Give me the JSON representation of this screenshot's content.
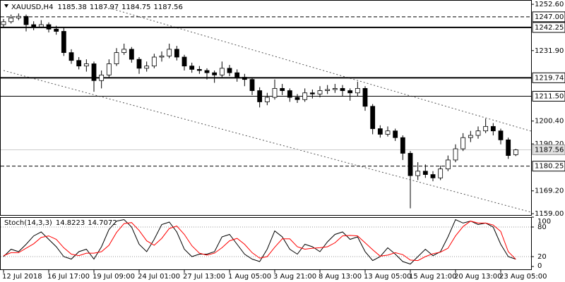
{
  "chart_data": {
    "type": "candlestick",
    "title": "XAUUSD,H4",
    "ohlc_now": [
      1185.38,
      1187.97,
      1184.75,
      1187.56
    ],
    "categories": [
      "12 Jul 2018",
      null,
      null,
      null,
      null,
      null,
      "16 Jul 17:00",
      null,
      null,
      null,
      null,
      null,
      "19 Jul 09:00",
      null,
      null,
      null,
      null,
      null,
      "24 Jul 01:00",
      null,
      null,
      null,
      null,
      null,
      "27 Jul 13:00",
      null,
      null,
      null,
      null,
      null,
      "1 Aug 05:00",
      null,
      null,
      null,
      null,
      null,
      "3 Aug 21:00",
      null,
      null,
      null,
      null,
      null,
      "8 Aug 13:00",
      null,
      null,
      null,
      null,
      null,
      "13 Aug 05:00",
      null,
      null,
      null,
      null,
      null,
      "15 Aug 21:00",
      null,
      null,
      null,
      null,
      null,
      "20 Aug 13:00",
      null,
      null,
      null,
      null,
      null,
      "23 Aug 05:00",
      null,
      null
    ],
    "candles": [
      [
        1243.5,
        1246,
        1242.5,
        1244.8
      ],
      [
        1244.8,
        1248,
        1244,
        1246.5
      ],
      [
        1246.5,
        1248.5,
        1245.5,
        1247.2
      ],
      [
        1247.2,
        1248,
        1240.5,
        1243.5
      ],
      [
        1243.5,
        1245,
        1241,
        1242.5
      ],
      [
        1242.5,
        1245.5,
        1242,
        1243.5
      ],
      [
        1243.5,
        1244.5,
        1240,
        1241.5
      ],
      [
        1241.5,
        1243,
        1239,
        1240.5
      ],
      [
        1240.5,
        1242.5,
        1229.5,
        1231
      ],
      [
        1231,
        1232.5,
        1226,
        1227.5
      ],
      [
        1227.5,
        1229,
        1223.5,
        1225
      ],
      [
        1225,
        1228,
        1222.5,
        1226
      ],
      [
        1226,
        1227,
        1213.5,
        1218.5
      ],
      [
        1218.5,
        1223,
        1215,
        1221
      ],
      [
        1221,
        1228,
        1220,
        1226
      ],
      [
        1226,
        1233,
        1225,
        1231
      ],
      [
        1231,
        1235,
        1230,
        1232.5
      ],
      [
        1232.5,
        1233.5,
        1226.5,
        1228
      ],
      [
        1228,
        1229,
        1221.5,
        1224
      ],
      [
        1224,
        1227,
        1222.5,
        1225
      ],
      [
        1225,
        1230.5,
        1224,
        1229
      ],
      [
        1229,
        1231.5,
        1227,
        1229.5
      ],
      [
        1229.5,
        1235,
        1228.5,
        1232.5
      ],
      [
        1232.5,
        1234,
        1227.5,
        1229
      ],
      [
        1229,
        1230,
        1223,
        1225
      ],
      [
        1225,
        1226.5,
        1222,
        1223.5
      ],
      [
        1223.5,
        1225,
        1221.5,
        1223
      ],
      [
        1223,
        1224,
        1219,
        1222
      ],
      [
        1222,
        1223,
        1217.5,
        1221
      ],
      [
        1221,
        1227,
        1220,
        1224
      ],
      [
        1224,
        1225.5,
        1220.5,
        1222
      ],
      [
        1222,
        1223.5,
        1218,
        1220
      ],
      [
        1220,
        1221.5,
        1216,
        1219
      ],
      [
        1219,
        1220,
        1212,
        1214
      ],
      [
        1214,
        1215.5,
        1206.5,
        1209
      ],
      [
        1209,
        1213,
        1207.5,
        1211
      ],
      [
        1211,
        1219,
        1210,
        1215
      ],
      [
        1215,
        1217,
        1212,
        1214
      ],
      [
        1214,
        1215,
        1209,
        1211
      ],
      [
        1211,
        1212.5,
        1208.5,
        1210
      ],
      [
        1210,
        1215,
        1209,
        1213
      ],
      [
        1213,
        1214.5,
        1210.5,
        1212.5
      ],
      [
        1212.5,
        1216,
        1211,
        1214
      ],
      [
        1214,
        1216.5,
        1212.5,
        1214.5
      ],
      [
        1214.5,
        1217,
        1213,
        1215
      ],
      [
        1215,
        1216.5,
        1211.5,
        1214
      ],
      [
        1214,
        1215,
        1209.5,
        1213
      ],
      [
        1213,
        1218,
        1211.5,
        1215
      ],
      [
        1215,
        1216,
        1205,
        1207
      ],
      [
        1207,
        1208,
        1194.5,
        1197
      ],
      [
        1197,
        1198.5,
        1193,
        1194.5
      ],
      [
        1194.5,
        1198,
        1193.5,
        1196
      ],
      [
        1196,
        1197,
        1191.5,
        1193
      ],
      [
        1193,
        1194,
        1183,
        1186
      ],
      [
        1186,
        1187,
        1161.4,
        1176
      ],
      [
        1176,
        1182,
        1174,
        1178
      ],
      [
        1178,
        1181,
        1175,
        1176.5
      ],
      [
        1176.5,
        1178,
        1173.5,
        1175
      ],
      [
        1175,
        1180.5,
        1174,
        1179
      ],
      [
        1179,
        1185,
        1178,
        1183
      ],
      [
        1183,
        1190,
        1182,
        1188
      ],
      [
        1188,
        1195,
        1187,
        1193
      ],
      [
        1193,
        1196,
        1191,
        1194
      ],
      [
        1194,
        1198,
        1192.5,
        1196
      ],
      [
        1196,
        1201.5,
        1195,
        1198
      ],
      [
        1198,
        1199.5,
        1194,
        1196
      ],
      [
        1196,
        1197,
        1190,
        1192
      ],
      [
        1192,
        1193,
        1183.5,
        1185
      ],
      [
        1185.38,
        1187.97,
        1184.75,
        1187.56
      ]
    ],
    "colors": {
      "up": "#ffffff",
      "down": "#000000"
    },
    "ylim": [
      1158.4,
      1254.2
    ],
    "yticks": [
      {
        "value": 1252.6,
        "label": "1252.60"
      },
      {
        "value": 1231.9,
        "label": "1231.90"
      },
      {
        "value": 1200.4,
        "label": "1200.40"
      },
      {
        "value": 1190.2,
        "label": "1190.20"
      },
      {
        "value": 1169.2,
        "label": "1169.20"
      },
      {
        "value": 1159,
        "label": "1159.00"
      }
    ],
    "levels": [
      {
        "value": 1247,
        "label": "1247.00",
        "style": "dashed"
      },
      {
        "value": 1242.25,
        "style": "thick"
      },
      {
        "value": 1219.74,
        "style": "thick"
      },
      {
        "value": 1211.5,
        "label": "1211.50",
        "style": "solid"
      },
      {
        "value": 1180.25,
        "style": "dashed"
      }
    ],
    "last_price": 1187.56,
    "indicator": {
      "type": "line",
      "name": "Stoch(14,3,3)",
      "ylim": [
        0,
        100
      ],
      "yticks": [
        100,
        80,
        20,
        0
      ],
      "levels": [
        80,
        20
      ],
      "series": [
        {
          "color": "#000000",
          "now": 14.8223,
          "values": [
            20,
            35,
            30,
            45,
            62,
            70,
            55,
            40,
            20,
            15,
            30,
            35,
            15,
            40,
            75,
            92,
            95,
            80,
            45,
            30,
            55,
            85,
            90,
            70,
            35,
            20,
            25,
            25,
            30,
            60,
            65,
            45,
            25,
            15,
            10,
            35,
            72,
            60,
            35,
            25,
            45,
            40,
            30,
            50,
            65,
            70,
            55,
            60,
            30,
            12,
            20,
            38,
            25,
            10,
            5,
            20,
            35,
            22,
            30,
            60,
            95,
            88,
            92,
            85,
            88,
            80,
            45,
            20,
            14.82
          ]
        },
        {
          "color": "#ff0000",
          "now": 14.7072,
          "values": [
            22,
            28,
            28,
            37,
            46,
            59,
            62,
            55,
            38,
            25,
            22,
            27,
            27,
            30,
            43,
            69,
            87,
            89,
            73,
            52,
            43,
            57,
            77,
            82,
            65,
            42,
            27,
            23,
            27,
            38,
            52,
            57,
            45,
            28,
            17,
            20,
            39,
            56,
            56,
            40,
            35,
            37,
            38,
            40,
            48,
            62,
            63,
            62,
            48,
            34,
            21,
            23,
            28,
            24,
            13,
            12,
            20,
            26,
            29,
            37,
            62,
            81,
            92,
            88,
            88,
            84,
            71,
            30,
            14.71
          ]
        }
      ]
    }
  }
}
